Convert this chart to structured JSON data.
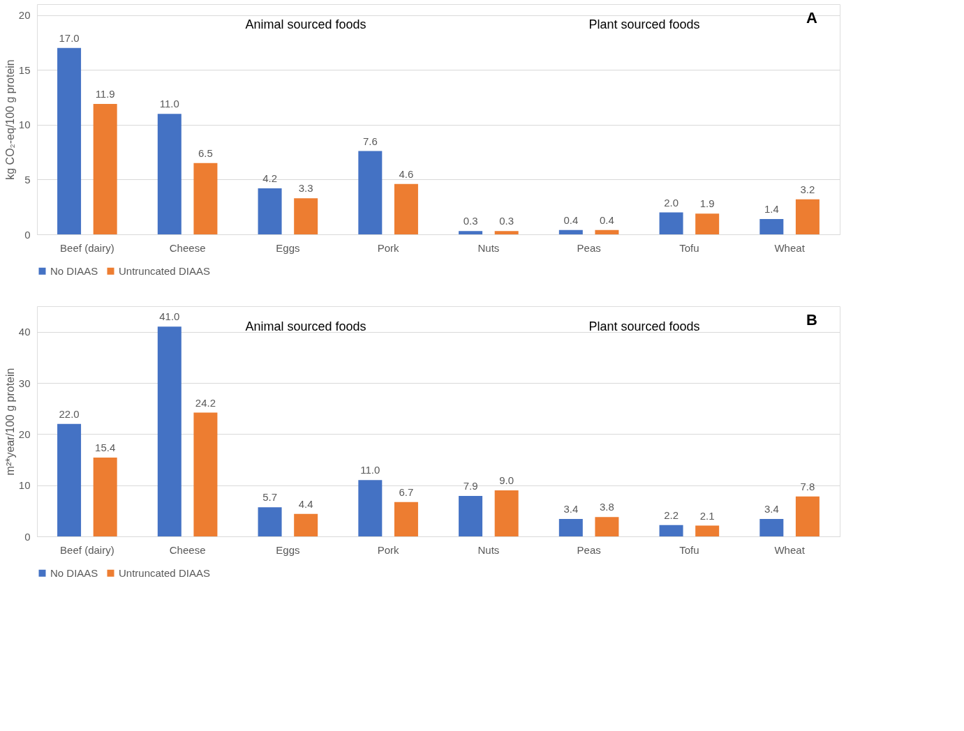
{
  "chart_data": [
    {
      "type": "bar",
      "ylabel": "kg CO₂-eq/100 g protein",
      "categories": [
        "Beef (dairy)",
        "Cheese",
        "Eggs",
        "Pork",
        "Nuts",
        "Peas",
        "Tofu",
        "Wheat"
      ],
      "series": [
        {
          "name": "No DIAAS",
          "color": "#4472c4",
          "values": [
            17.0,
            11.0,
            4.2,
            7.6,
            0.3,
            0.4,
            2.0,
            1.4
          ],
          "value_labels": [
            "17.0",
            "11.0",
            "4.2",
            "7.6",
            "0.3",
            "0.4",
            "2.0",
            "1.4"
          ]
        },
        {
          "name": "Untruncated DIAAS",
          "color": "#ed7d31",
          "values": [
            11.9,
            6.5,
            3.3,
            4.6,
            0.3,
            0.4,
            1.9,
            3.2
          ],
          "value_labels": [
            "11.9",
            "6.5",
            "3.3",
            "4.6",
            "0.3",
            "0.4",
            "1.9",
            "3.2"
          ]
        }
      ],
      "ylim": [
        0,
        21
      ],
      "yticks": [
        0,
        5,
        10,
        15,
        20
      ],
      "grid": "y",
      "legend": "bottom",
      "annotations": [
        "Animal sourced foods",
        "Plant sourced foods",
        "A"
      ]
    },
    {
      "type": "bar",
      "ylabel": "m²*year/100 g protein",
      "categories": [
        "Beef (dairy)",
        "Cheese",
        "Eggs",
        "Pork",
        "Nuts",
        "Peas",
        "Tofu",
        "Wheat"
      ],
      "series": [
        {
          "name": "No DIAAS",
          "color": "#4472c4",
          "values": [
            22.0,
            41.0,
            5.7,
            11.0,
            7.9,
            3.4,
            2.2,
            3.4
          ],
          "value_labels": [
            "22.0",
            "41.0",
            "5.7",
            "11.0",
            "7.9",
            "3.4",
            "2.2",
            "3.4"
          ]
        },
        {
          "name": "Untruncated DIAAS",
          "color": "#ed7d31",
          "values": [
            15.4,
            24.2,
            4.4,
            6.7,
            9.0,
            3.8,
            2.1,
            7.8
          ],
          "value_labels": [
            "15.4",
            "24.2",
            "4.4",
            "6.7",
            "9.0",
            "3.8",
            "2.1",
            "7.8"
          ]
        }
      ],
      "ylim": [
        0,
        45
      ],
      "yticks": [
        0,
        10,
        20,
        30,
        40
      ],
      "grid": "y",
      "legend": "bottom",
      "annotations": [
        "Animal sourced foods",
        "Plant sourced foods",
        "B"
      ]
    }
  ]
}
